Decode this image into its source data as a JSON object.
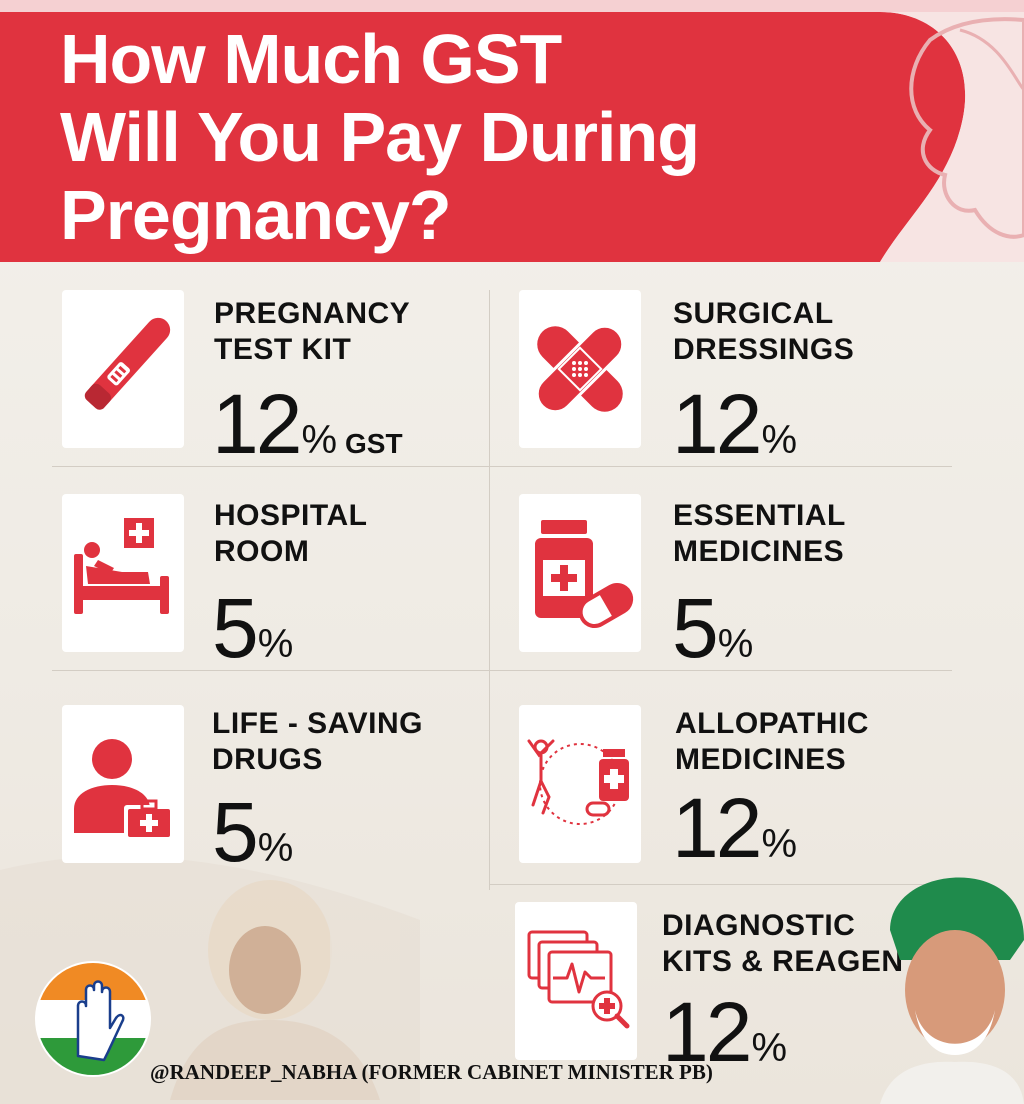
{
  "title": {
    "line1": "How Much GST",
    "line2": "Will You Pay During",
    "line3": "Pregnancy?"
  },
  "items": [
    {
      "label_line1": "PREGNANCY",
      "label_line2": "TEST KIT",
      "value": "12",
      "unit": "%",
      "suffix": "GST",
      "icon": "pregnancy-test-icon"
    },
    {
      "label_line1": "SURGICAL",
      "label_line2": "DRESSINGS",
      "value": "12",
      "unit": "%",
      "icon": "bandage-icon"
    },
    {
      "label_line1": "HOSPITAL",
      "label_line2": "ROOM",
      "value": "5",
      "unit": "%",
      "icon": "hospital-bed-icon"
    },
    {
      "label_line1": "ESSENTIAL",
      "label_line2": "MEDICINES",
      "value": "5",
      "unit": "%",
      "icon": "medicine-bottle-icon"
    },
    {
      "label_line1": "LIFE - SAVING",
      "label_line2": "DRUGS",
      "value": "5",
      "unit": "%",
      "icon": "patient-medkit-icon"
    },
    {
      "label_line1": "ALLOPATHIC",
      "label_line2": "MEDICINES",
      "value": "12",
      "unit": "%",
      "icon": "body-medicine-cycle-icon"
    },
    {
      "label_line1": "DIAGNOSTIC",
      "label_line2": "KITS & REAGEN",
      "value": "12",
      "unit": "%",
      "icon": "diagnostic-monitor-icon"
    }
  ],
  "footer": {
    "handle": "@RANDEEP_NABHA (FORMER CABINET MINISTER PB)"
  },
  "colors": {
    "accent": "#e0333f",
    "background": "#f3efe9",
    "card": "#ffffff",
    "text": "#111111"
  }
}
